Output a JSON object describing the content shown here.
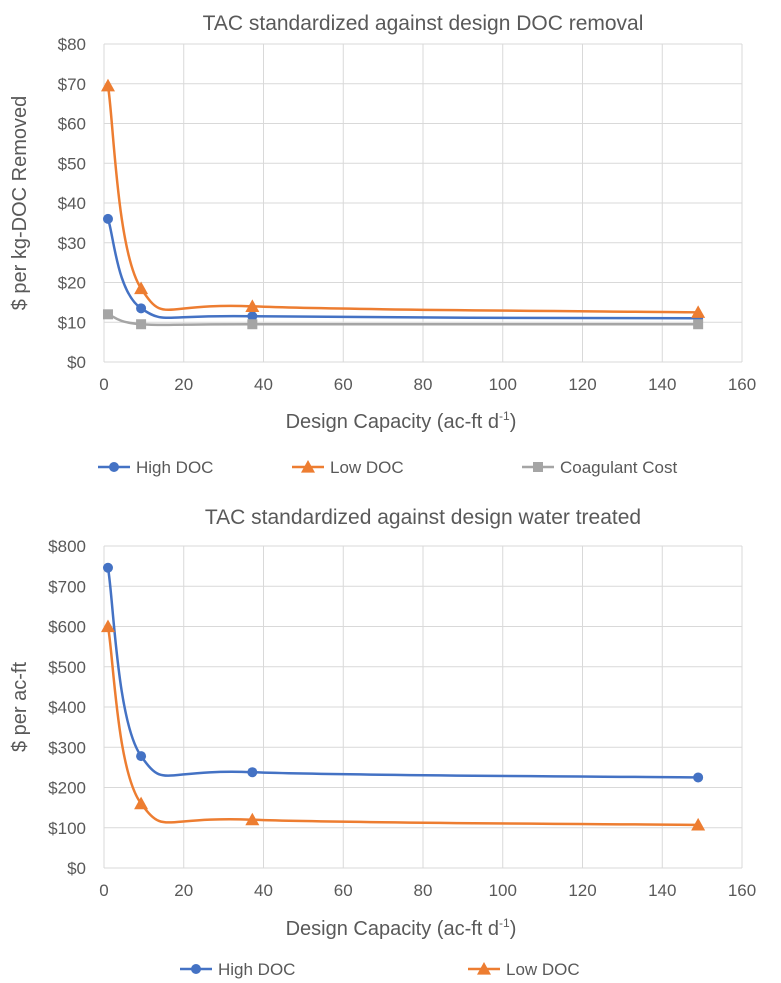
{
  "chart_data": [
    {
      "type": "scatter",
      "title": "TAC standardized against design DOC removal",
      "xlabel": "Design Capacity (ac-ft d-1)",
      "ylabel": "$ per kg-DOC Removed",
      "xlim": [
        0,
        160
      ],
      "ylim": [
        0,
        80
      ],
      "xticks": [
        "0",
        "20",
        "40",
        "60",
        "80",
        "100",
        "120",
        "140",
        "160"
      ],
      "yticks": [
        "$0",
        "$10",
        "$20",
        "$30",
        "$40",
        "$50",
        "$60",
        "$70",
        "$80"
      ],
      "grid": true,
      "legend_position": "bottom",
      "series": [
        {
          "name": "High DOC",
          "color": "#4472C4",
          "marker": "circle",
          "x": [
            1,
            9.3,
            37.2,
            149
          ],
          "y": [
            36,
            13.5,
            11.5,
            11
          ]
        },
        {
          "name": "Low DOC",
          "color": "#ED7D31",
          "marker": "triangle",
          "x": [
            1,
            9.3,
            37.2,
            149
          ],
          "y": [
            69.5,
            18.5,
            14,
            12.5
          ]
        },
        {
          "name": "Coagulant Cost",
          "color": "#A5A5A5",
          "marker": "square",
          "x": [
            1,
            9.3,
            37.2,
            149
          ],
          "y": [
            12,
            9.5,
            9.5,
            9.5
          ]
        }
      ]
    },
    {
      "type": "scatter",
      "title": "TAC standardized against design water treated",
      "xlabel": "Design Capacity (ac-ft d-1)",
      "ylabel": "$ per ac-ft",
      "xlim": [
        0,
        160
      ],
      "ylim": [
        0,
        800
      ],
      "xticks": [
        "0",
        "20",
        "40",
        "60",
        "80",
        "100",
        "120",
        "140",
        "160"
      ],
      "yticks": [
        "$0",
        "$100",
        "$200",
        "$300",
        "$400",
        "$500",
        "$600",
        "$700",
        "$800"
      ],
      "grid": true,
      "legend_position": "bottom",
      "series": [
        {
          "name": "High DOC",
          "color": "#4472C4",
          "marker": "circle",
          "x": [
            1,
            9.3,
            37.2,
            149
          ],
          "y": [
            746,
            278,
            238,
            225
          ]
        },
        {
          "name": "Low DOC",
          "color": "#ED7D31",
          "marker": "triangle",
          "x": [
            1,
            9.3,
            37.2,
            149
          ],
          "y": [
            600,
            160,
            120,
            107
          ]
        }
      ]
    }
  ]
}
